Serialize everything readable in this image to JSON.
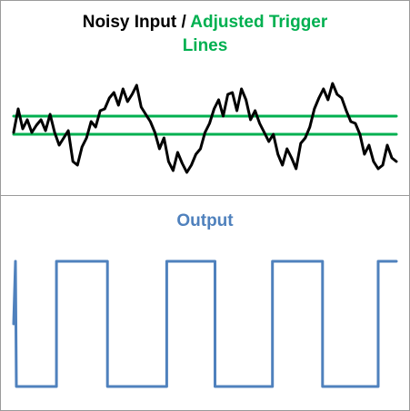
{
  "colors": {
    "noisy": "#000000",
    "trigger": "#00b050",
    "output": "#4f81bd",
    "border": "#9a9a9a"
  },
  "top_panel": {
    "title_part1": "Noisy Input / ",
    "title_part2": "Adjusted Trigger",
    "title_line2": "Lines"
  },
  "bottom_panel": {
    "title": "Output"
  },
  "chart_data": [
    {
      "type": "line",
      "title": "Noisy Input / Adjusted Trigger Lines",
      "xlabel": "",
      "ylabel": "",
      "grid": false,
      "xlim": [
        0,
        420
      ],
      "ylim": [
        -1.4,
        1.6
      ],
      "series": [
        {
          "kind": "noisy",
          "x": [
            0,
            5,
            10,
            15,
            20,
            25,
            30,
            35,
            40,
            45,
            50,
            55,
            60,
            65,
            70,
            75,
            80,
            85,
            90,
            95,
            100,
            105,
            110,
            115,
            120,
            125,
            130,
            135,
            140,
            145,
            150,
            155,
            160,
            165,
            170,
            175,
            180,
            185,
            190,
            195,
            200,
            205,
            210,
            215,
            220,
            225,
            230,
            235,
            240,
            245,
            250,
            255,
            260,
            265,
            270,
            275,
            280,
            285,
            290,
            295,
            300,
            305,
            310,
            315,
            320,
            325,
            330,
            335,
            340,
            345,
            350,
            355,
            360,
            365,
            370,
            375,
            380,
            385,
            390,
            395,
            400,
            405,
            410,
            415,
            420
          ],
          "values": [
            0.0,
            0.65,
            0.1,
            0.35,
            0.0,
            0.2,
            0.35,
            0.05,
            0.5,
            0.0,
            -0.35,
            -0.15,
            0.05,
            -0.8,
            -0.9,
            -0.4,
            -0.15,
            0.3,
            0.15,
            0.6,
            0.65,
            0.95,
            1.1,
            0.75,
            1.2,
            0.85,
            1.05,
            1.3,
            0.7,
            0.5,
            0.3,
            0.0,
            -0.45,
            -0.15,
            -0.8,
            -1.05,
            -0.55,
            -0.85,
            -1.1,
            -0.9,
            -0.6,
            -0.45,
            0.0,
            0.25,
            0.65,
            0.9,
            0.45,
            1.05,
            1.1,
            0.6,
            1.2,
            0.9,
            0.35,
            0.6,
            0.25,
            0.0,
            -0.25,
            -0.05,
            -0.6,
            -0.9,
            -0.45,
            -0.7,
            -1.0,
            -0.3,
            -0.15,
            0.15,
            0.65,
            0.95,
            1.2,
            0.9,
            1.35,
            1.05,
            0.95,
            0.6,
            0.3,
            0.25,
            -0.05,
            -0.6,
            -0.35,
            -0.8,
            -1.0,
            -0.9,
            -0.35,
            -0.7,
            -0.8
          ]
        },
        {
          "kind": "trigger",
          "x": [
            0,
            420
          ],
          "values": [
            0.45,
            0.45
          ]
        },
        {
          "kind": "trigger",
          "x": [
            0,
            420
          ],
          "values": [
            -0.05,
            -0.05
          ]
        }
      ]
    },
    {
      "type": "line",
      "title": "Output",
      "xlabel": "",
      "ylabel": "",
      "grid": false,
      "xlim": [
        0,
        420
      ],
      "ylim": [
        0,
        1
      ],
      "series": [
        {
          "kind": "output",
          "x": [
            0,
            2,
            3,
            47,
            47,
            103,
            103,
            168,
            168,
            221,
            221,
            284,
            284,
            339,
            339,
            400,
            400,
            420
          ],
          "values": [
            0.5,
            1,
            0,
            0,
            1,
            1,
            0,
            0,
            1,
            1,
            0,
            0,
            1,
            1,
            0,
            0,
            1,
            1
          ]
        }
      ]
    }
  ]
}
